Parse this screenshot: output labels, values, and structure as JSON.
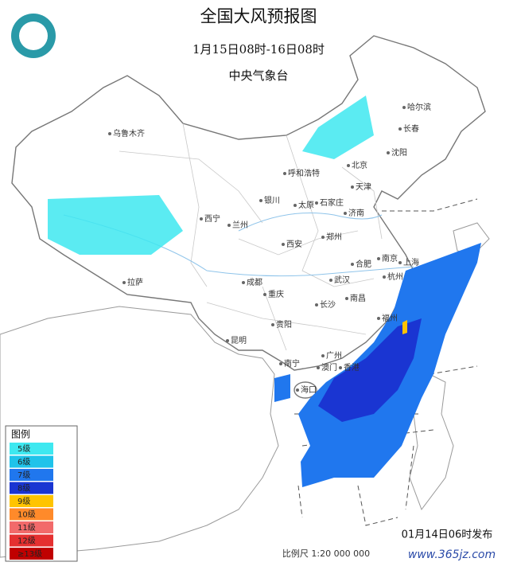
{
  "header": {
    "title": "全国大风预报图",
    "period": "1月15日08时-16日08时",
    "issuer": "中央气象台"
  },
  "legend": {
    "title": "图例",
    "items": [
      {
        "label": "5级",
        "color": "#3ee8f0"
      },
      {
        "label": "6级",
        "color": "#1fc3ea"
      },
      {
        "label": "7级",
        "color": "#2077ee"
      },
      {
        "label": "8级",
        "color": "#1a35d2"
      },
      {
        "label": "9级",
        "color": "#ffc400"
      },
      {
        "label": "10级",
        "color": "#ff8a2a"
      },
      {
        "label": "11级",
        "color": "#f26a6a"
      },
      {
        "label": "12级",
        "color": "#e53030"
      },
      {
        "label": "≥13级",
        "color": "#c00000"
      }
    ]
  },
  "cities": [
    "乌鲁木齐",
    "哈尔滨",
    "长春",
    "沈阳",
    "北京",
    "天津",
    "呼和浩特",
    "银川",
    "石家庄",
    "太原",
    "济南",
    "西宁",
    "兰州",
    "郑州",
    "西安",
    "合肥",
    "南京",
    "上海",
    "成都",
    "武汉",
    "杭州",
    "重庆",
    "南昌",
    "长沙",
    "拉萨",
    "贵阳",
    "福州",
    "昆明",
    "南宁",
    "广州",
    "澳门",
    "香港",
    "海口"
  ],
  "footer": {
    "issued": "01月14日06时发布",
    "scale": "比例尺 1:20 000 000",
    "watermark": "www.365jz.com"
  }
}
